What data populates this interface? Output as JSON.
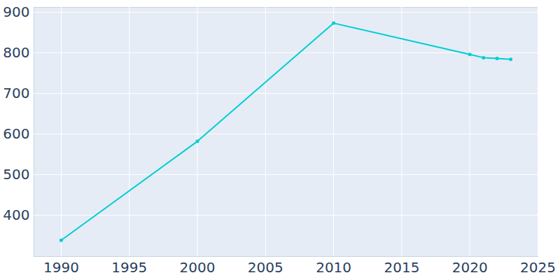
{
  "chart_data": {
    "type": "line",
    "x": [
      1990,
      2000,
      2010,
      2020,
      2021,
      2022,
      2023
    ],
    "values": [
      338,
      582,
      873,
      796,
      788,
      786,
      784
    ],
    "color": "#00ced1",
    "marker": "circle",
    "xlim": [
      1988,
      2025
    ],
    "ylim": [
      298,
      912
    ],
    "xticks": [
      1990,
      1995,
      2000,
      2005,
      2010,
      2015,
      2020,
      2025
    ],
    "yticks": [
      400,
      500,
      600,
      700,
      800,
      900
    ],
    "grid": true
  }
}
